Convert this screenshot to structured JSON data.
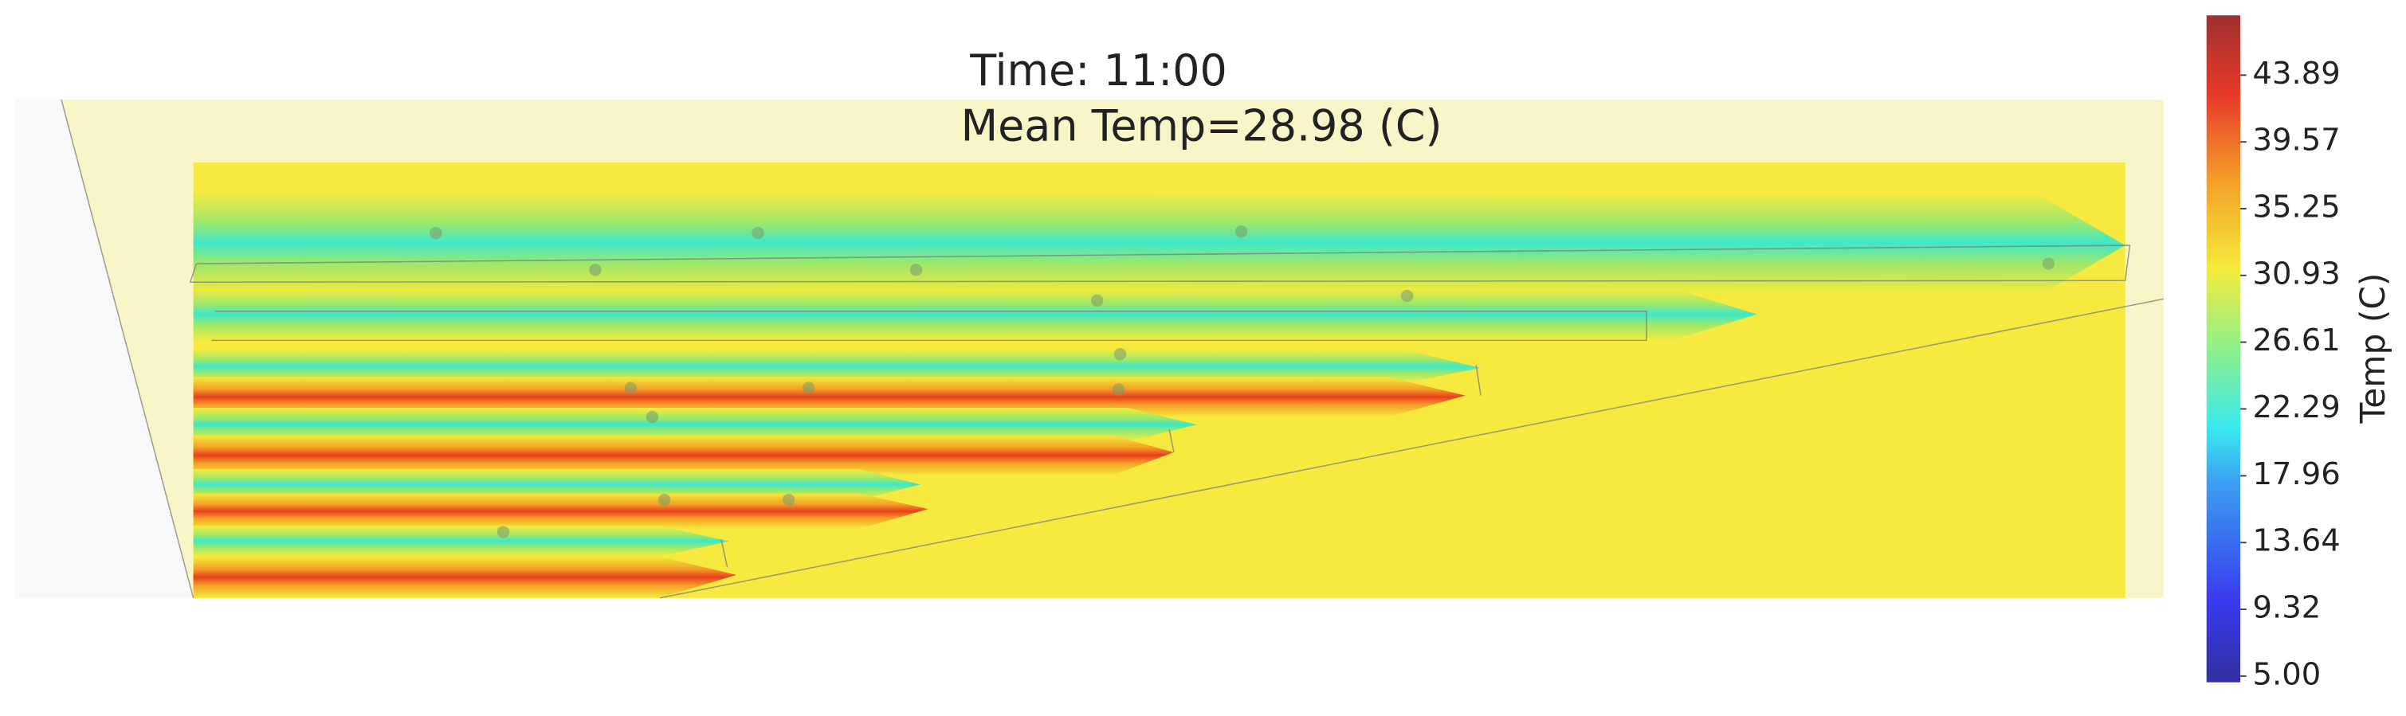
{
  "chart_data": {
    "type": "colormap",
    "title": "Time: 11:00",
    "subtitle": "Mean Temp=28.98 (C)",
    "colorbar": {
      "label": "Temp (C)",
      "lim": [
        4.6,
        47.76
      ],
      "ticks": [
        {
          "value": 5,
          "label": "5.00"
        },
        {
          "value": 9.32,
          "label": "9.32"
        },
        {
          "value": 13.64,
          "label": "13.64"
        },
        {
          "value": 17.96,
          "label": "17.96"
        },
        {
          "value": 22.29,
          "label": "22.29"
        },
        {
          "value": 26.61,
          "label": "26.61"
        },
        {
          "value": 30.93,
          "label": "30.93"
        },
        {
          "value": 35.25,
          "label": "35.25"
        },
        {
          "value": 39.57,
          "label": "39.57"
        },
        {
          "value": 43.89,
          "label": "43.89"
        }
      ]
    }
  }
}
